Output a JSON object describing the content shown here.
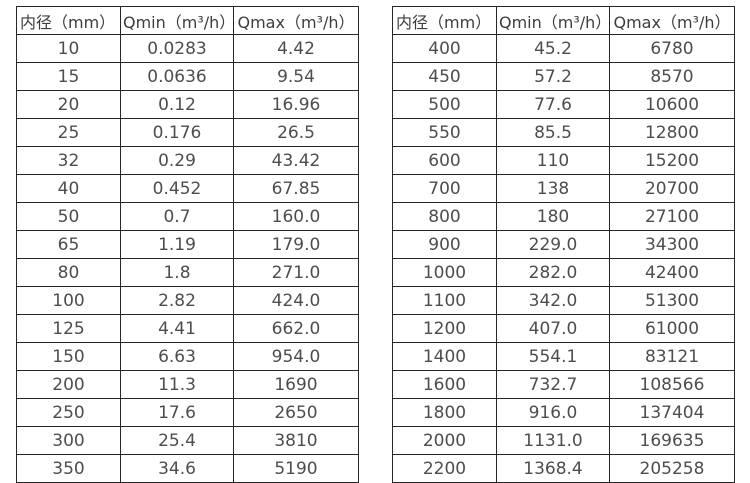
{
  "tables": [
    {
      "name": "flow-range-table-small-diameters",
      "headers": [
        "内径（mm）",
        "Qmin（m³/h）",
        "Qmax（m³/h）"
      ],
      "rows": [
        [
          "10",
          "0.0283",
          "4.42"
        ],
        [
          "15",
          "0.0636",
          "9.54"
        ],
        [
          "20",
          "0.12",
          "16.96"
        ],
        [
          "25",
          "0.176",
          "26.5"
        ],
        [
          "32",
          "0.29",
          "43.42"
        ],
        [
          "40",
          "0.452",
          "67.85"
        ],
        [
          "50",
          "0.7",
          "160.0"
        ],
        [
          "65",
          "1.19",
          "179.0"
        ],
        [
          "80",
          "1.8",
          "271.0"
        ],
        [
          "100",
          "2.82",
          "424.0"
        ],
        [
          "125",
          "4.41",
          "662.0"
        ],
        [
          "150",
          "6.63",
          "954.0"
        ],
        [
          "200",
          "11.3",
          "1690"
        ],
        [
          "250",
          "17.6",
          "2650"
        ],
        [
          "300",
          "25.4",
          "3810"
        ],
        [
          "350",
          "34.6",
          "5190"
        ]
      ]
    },
    {
      "name": "flow-range-table-large-diameters",
      "headers": [
        "内径（mm）",
        "Qmin（m³/h）",
        "Qmax（m³/h）"
      ],
      "rows": [
        [
          "400",
          "45.2",
          "6780"
        ],
        [
          "450",
          "57.2",
          "8570"
        ],
        [
          "500",
          "77.6",
          "10600"
        ],
        [
          "550",
          "85.5",
          "12800"
        ],
        [
          "600",
          "110",
          "15200"
        ],
        [
          "700",
          "138",
          "20700"
        ],
        [
          "800",
          "180",
          "27100"
        ],
        [
          "900",
          "229.0",
          "34300"
        ],
        [
          "1000",
          "282.0",
          "42400"
        ],
        [
          "1100",
          "342.0",
          "51300"
        ],
        [
          "1200",
          "407.0",
          "61000"
        ],
        [
          "1400",
          "554.1",
          "83121"
        ],
        [
          "1600",
          "732.7",
          "108566"
        ],
        [
          "1800",
          "916.0",
          "137404"
        ],
        [
          "2000",
          "1131.0",
          "169635"
        ],
        [
          "2200",
          "1368.4",
          "205258"
        ]
      ]
    }
  ],
  "colors": {
    "border": "#262626",
    "header_text": "#3d3d3d",
    "cell_text": "#4d4d4d",
    "background": "#ffffff"
  }
}
